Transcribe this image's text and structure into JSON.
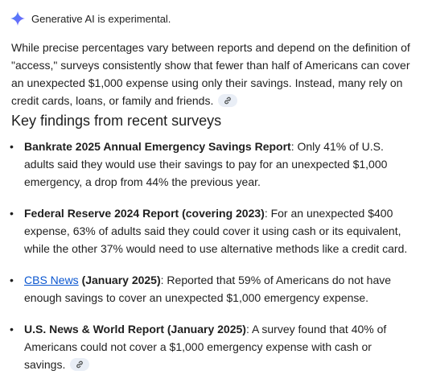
{
  "banner": {
    "icon": "sparkle-icon",
    "text": "Generative AI is experimental."
  },
  "intro": {
    "text": "While precise percentages vary between reports and depend on the definition of \"access,\" surveys consistently show that fewer than half of Americans can cover an unexpected $1,000 expense using only their savings. Instead, many rely on credit cards, loans, or family and friends.",
    "link_icon": "link-icon"
  },
  "heading": "Key findings from recent surveys",
  "findings": [
    {
      "bold": "Bankrate 2025 Annual Emergency Savings Report",
      "text": ": Only 41% of U.S. adults said they would use their savings to pay for an unexpected $1,000 emergency, a drop from 44% the previous year."
    },
    {
      "bold": "Federal Reserve 2024 Report (covering 2023)",
      "text": ": For an unexpected $400 expense, 63% of adults said they could cover it using cash or its equivalent, while the other 37% would need to use alternative methods like a credit card."
    },
    {
      "link": "CBS News",
      "bold": " (January 2025)",
      "text": ": Reported that 59% of Americans do not have enough savings to cover an unexpected $1,000 emergency expense."
    },
    {
      "bold": "U.S. News & World Report (January 2025)",
      "text": ": A survey found that 40% of Americans could not cover a $1,000 emergency expense with cash or savings."
    }
  ],
  "colors": {
    "sparkle": "#4285f4",
    "link": "#0b57d0",
    "chip_bg": "#e9eef6"
  }
}
